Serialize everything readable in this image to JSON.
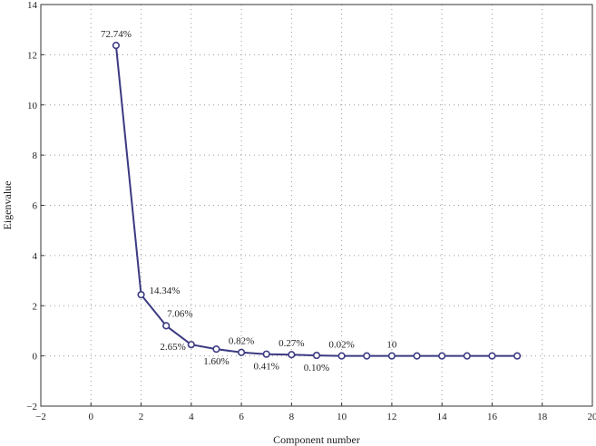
{
  "chart_data": {
    "type": "line",
    "title": "",
    "xlabel": "Component number",
    "ylabel": "Eigenvalue",
    "xlim": [
      -2,
      20
    ],
    "ylim": [
      -2,
      14
    ],
    "xticks": [
      -2,
      0,
      2,
      4,
      6,
      8,
      10,
      12,
      14,
      16,
      18,
      20
    ],
    "yticks": [
      -2,
      0,
      2,
      4,
      6,
      8,
      10,
      12,
      14
    ],
    "xtick_labels": [
      "−2",
      "0",
      "2",
      "4",
      "6",
      "8",
      "10",
      "12",
      "14",
      "16",
      "18",
      "20"
    ],
    "ytick_labels": [
      "−2",
      "0",
      "2",
      "4",
      "6",
      "8",
      "10",
      "12",
      "14"
    ],
    "grid": true,
    "series": [
      {
        "x": [
          1,
          2,
          3,
          4,
          5,
          6,
          7,
          8,
          9,
          10,
          11,
          12,
          13,
          14,
          15,
          16,
          17
        ],
        "y": [
          12.37,
          2.44,
          1.2,
          0.45,
          0.27,
          0.14,
          0.07,
          0.05,
          0.02,
          0.0,
          0.0,
          0.0,
          0.0,
          0.0,
          0.0,
          0.0,
          0.0
        ]
      }
    ],
    "annotations": [
      {
        "text": "72.74%",
        "x": 1,
        "y": 12.37,
        "position": "above"
      },
      {
        "text": "14.34%",
        "x": 2,
        "y": 2.44,
        "position": "right"
      },
      {
        "text": "7.06%",
        "x": 3,
        "y": 1.2,
        "position": "above-right"
      },
      {
        "text": "2.65%",
        "x": 4,
        "y": 0.45,
        "position": "left"
      },
      {
        "text": "1.60%",
        "x": 5,
        "y": 0.27,
        "position": "below"
      },
      {
        "text": "0.82%",
        "x": 6,
        "y": 0.14,
        "position": "above"
      },
      {
        "text": "0.41%",
        "x": 7,
        "y": 0.07,
        "position": "below"
      },
      {
        "text": "0.27%",
        "x": 8,
        "y": 0.05,
        "position": "above"
      },
      {
        "text": "0.10%",
        "x": 9,
        "y": 0.02,
        "position": "below"
      },
      {
        "text": "0.02%",
        "x": 10,
        "y": 0.0,
        "position": "above"
      },
      {
        "text": "10",
        "x": 12,
        "y": 0.0,
        "position": "above"
      }
    ],
    "colors": {
      "line": "#3b3a82",
      "marker_fill": "#ffffff",
      "grid": "#9a9a9a",
      "frame": "#333333"
    }
  }
}
